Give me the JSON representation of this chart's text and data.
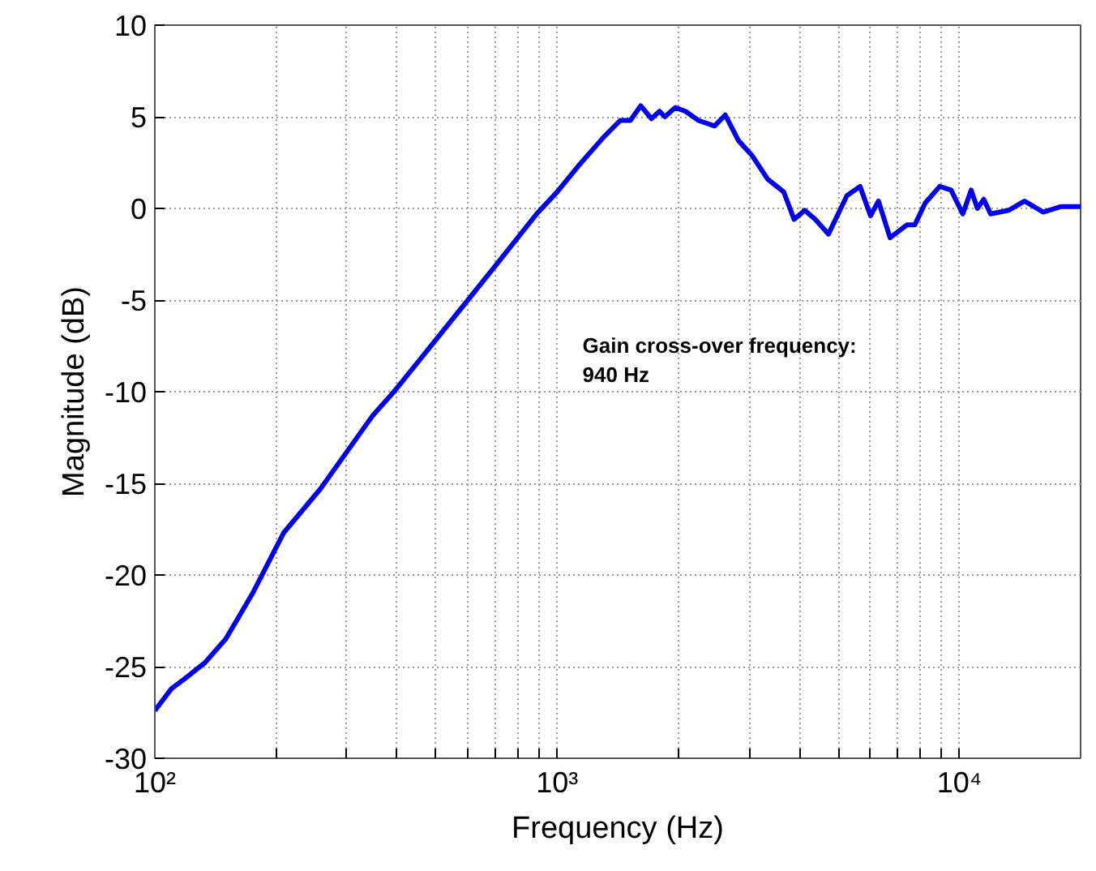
{
  "chart_data": {
    "type": "line",
    "xlabel": "Frequency (Hz)",
    "ylabel": "Magnitude (dB)",
    "annotations": [
      "Gain cross-over frequency:\n940 Hz"
    ],
    "log": "x",
    "grid": true,
    "marker": "none",
    "line_style": "solid",
    "xlim": [
      100,
      20000
    ],
    "ylim": [
      -30,
      10
    ],
    "xticks": [
      {
        "value": 100,
        "label": "10²"
      },
      {
        "value": 200,
        "label": null
      },
      {
        "value": 300,
        "label": null
      },
      {
        "value": 400,
        "label": null
      },
      {
        "value": 500,
        "label": null
      },
      {
        "value": 600,
        "label": null
      },
      {
        "value": 700,
        "label": null
      },
      {
        "value": 800,
        "label": null
      },
      {
        "value": 900,
        "label": null
      },
      {
        "value": 1000,
        "label": "10³"
      },
      {
        "value": 2000,
        "label": null
      },
      {
        "value": 3000,
        "label": null
      },
      {
        "value": 4000,
        "label": null
      },
      {
        "value": 5000,
        "label": null
      },
      {
        "value": 6000,
        "label": null
      },
      {
        "value": 7000,
        "label": null
      },
      {
        "value": 8000,
        "label": null
      },
      {
        "value": 9000,
        "label": null
      },
      {
        "value": 10000,
        "label": "10⁴"
      }
    ],
    "yticks": [
      -30,
      -25,
      -20,
      -15,
      -10,
      -5,
      0,
      5,
      10
    ],
    "series": [
      {
        "color": "#0000ee",
        "x": [
          100,
          110,
          118,
          133,
          150,
          175,
          197,
          209,
          258,
          348,
          393,
          600,
          698,
          889,
          1000,
          1127,
          1306,
          1434,
          1520,
          1613,
          1715,
          1797,
          1852,
          1965,
          2085,
          2245,
          2462,
          2616,
          2823,
          3047,
          3336,
          3656,
          3882,
          4124,
          4381,
          4725,
          5250,
          5660,
          6010,
          6290,
          6720,
          7400,
          7740,
          8220,
          8930,
          9530,
          10190,
          10690,
          11080,
          11490,
          11950,
          13260,
          14520,
          16130,
          17910,
          20000
        ],
        "values": [
          -27.4,
          -26.2,
          -25.7,
          -24.8,
          -23.5,
          -21.0,
          -18.8,
          -17.7,
          -15.3,
          -11.3,
          -10.0,
          -5.0,
          -3.2,
          -0.3,
          0.9,
          2.3,
          3.9,
          4.8,
          4.8,
          5.6,
          4.9,
          5.3,
          5.0,
          5.5,
          5.3,
          4.8,
          4.5,
          5.1,
          3.7,
          2.9,
          1.6,
          0.9,
          -0.6,
          -0.1,
          -0.6,
          -1.4,
          0.7,
          1.2,
          -0.4,
          0.4,
          -1.6,
          -0.9,
          -0.9,
          0.3,
          1.2,
          1.0,
          -0.3,
          1.0,
          0.0,
          0.5,
          -0.3,
          -0.1,
          0.4,
          -0.2,
          0.1,
          0.1
        ]
      }
    ]
  }
}
